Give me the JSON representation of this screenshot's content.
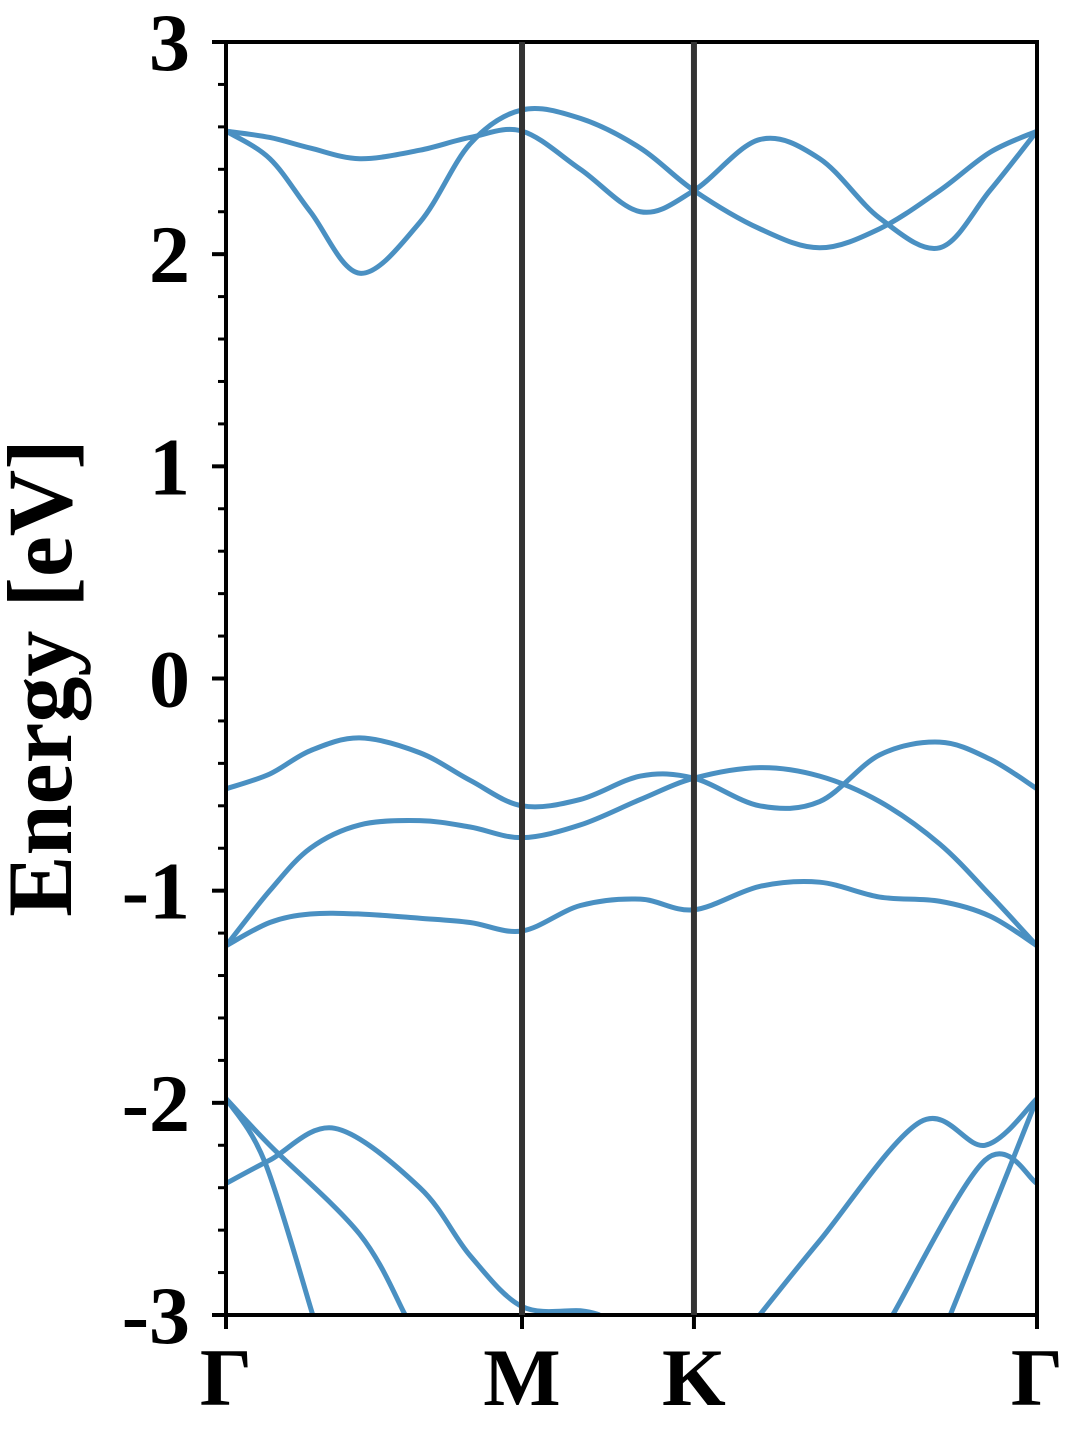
{
  "chart_data": {
    "type": "line",
    "ylabel": "Energy [eV]",
    "xlim": [
      0,
      1
    ],
    "ylim": [
      -3,
      3
    ],
    "xticks": [
      {
        "value": 0,
        "label": "Γ"
      },
      {
        "value": 0.365,
        "label": "M"
      },
      {
        "value": 0.577,
        "label": "K"
      },
      {
        "value": 1,
        "label": "Γ"
      }
    ],
    "yticks": [
      -3,
      -2,
      -1,
      0,
      1,
      2,
      3
    ],
    "yminor_ticks": [
      -2.8,
      -2.6,
      -2.4,
      -2.2,
      -1.8,
      -1.6,
      -1.4,
      -1.2,
      -0.8,
      -0.6,
      -0.4,
      -0.2,
      0.2,
      0.4,
      0.6,
      0.8,
      1.2,
      1.4,
      1.6,
      1.8,
      2.2,
      2.4,
      2.6,
      2.8
    ],
    "xtick_lines": true,
    "x": [
      0,
      0.054,
      0.104,
      0.165,
      0.239,
      0.301,
      0.365,
      0.437,
      0.511,
      0.577,
      0.658,
      0.732,
      0.806,
      0.88,
      0.942,
      1
    ],
    "series": [
      {
        "color": "#4a90c2",
        "values": [
          2.58,
          2.45,
          2.2,
          1.91,
          2.15,
          2.52,
          2.68,
          2.64,
          2.5,
          2.3,
          2.12,
          2.03,
          2.12,
          2.3,
          2.48,
          2.58
        ]
      },
      {
        "color": "#4a90c2",
        "values": [
          2.58,
          2.55,
          2.5,
          2.45,
          2.49,
          2.55,
          2.58,
          2.4,
          2.2,
          2.3,
          2.54,
          2.45,
          2.17,
          2.03,
          2.3,
          2.58
        ]
      },
      {
        "color": "#4a90c2",
        "values": [
          -0.52,
          -0.45,
          -0.34,
          -0.28,
          -0.35,
          -0.48,
          -0.6,
          -0.57,
          -0.46,
          -0.47,
          -0.6,
          -0.58,
          -0.36,
          -0.3,
          -0.38,
          -0.52
        ]
      },
      {
        "color": "#4a90c2",
        "values": [
          -1.26,
          -1.0,
          -0.8,
          -0.69,
          -0.67,
          -0.7,
          -0.75,
          -0.69,
          -0.57,
          -0.47,
          -0.42,
          -0.46,
          -0.58,
          -0.78,
          -1.02,
          -1.26
        ]
      },
      {
        "color": "#4a90c2",
        "values": [
          -1.26,
          -1.15,
          -1.11,
          -1.11,
          -1.13,
          -1.15,
          -1.19,
          -1.07,
          -1.04,
          -1.09,
          -0.98,
          -0.96,
          -1.03,
          -1.05,
          -1.12,
          -1.26
        ]
      },
      {
        "color": "#4a90c2",
        "x": [
          0,
          0.048,
          0.107
        ],
        "values": [
          -1.98,
          -2.28,
          -3.0
        ]
      },
      {
        "color": "#4a90c2",
        "x": [
          0,
          0.054,
          0.134,
          0.239,
          0.301,
          0.365,
          0.437,
          0.461
        ],
        "values": [
          -2.38,
          -2.27,
          -2.12,
          -2.4,
          -2.72,
          -2.96,
          -2.98,
          -3.0
        ]
      },
      {
        "color": "#4a90c2",
        "x": [
          0,
          0.054,
          0.165,
          0.221
        ],
        "values": [
          -1.98,
          -2.2,
          -2.62,
          -3.0
        ]
      },
      {
        "color": "#4a90c2",
        "x": [
          0.658,
          0.732,
          0.856,
          0.936,
          1
        ],
        "values": [
          -3.0,
          -2.65,
          -2.09,
          -2.2,
          -1.98
        ]
      },
      {
        "color": "#4a90c2",
        "x": [
          0.822,
          0.936,
          1
        ],
        "values": [
          -3.0,
          -2.27,
          -2.38
        ]
      },
      {
        "color": "#4a90c2",
        "x": [
          0.893,
          0.95,
          1
        ],
        "values": [
          -3.0,
          -2.46,
          -1.98
        ]
      }
    ]
  }
}
